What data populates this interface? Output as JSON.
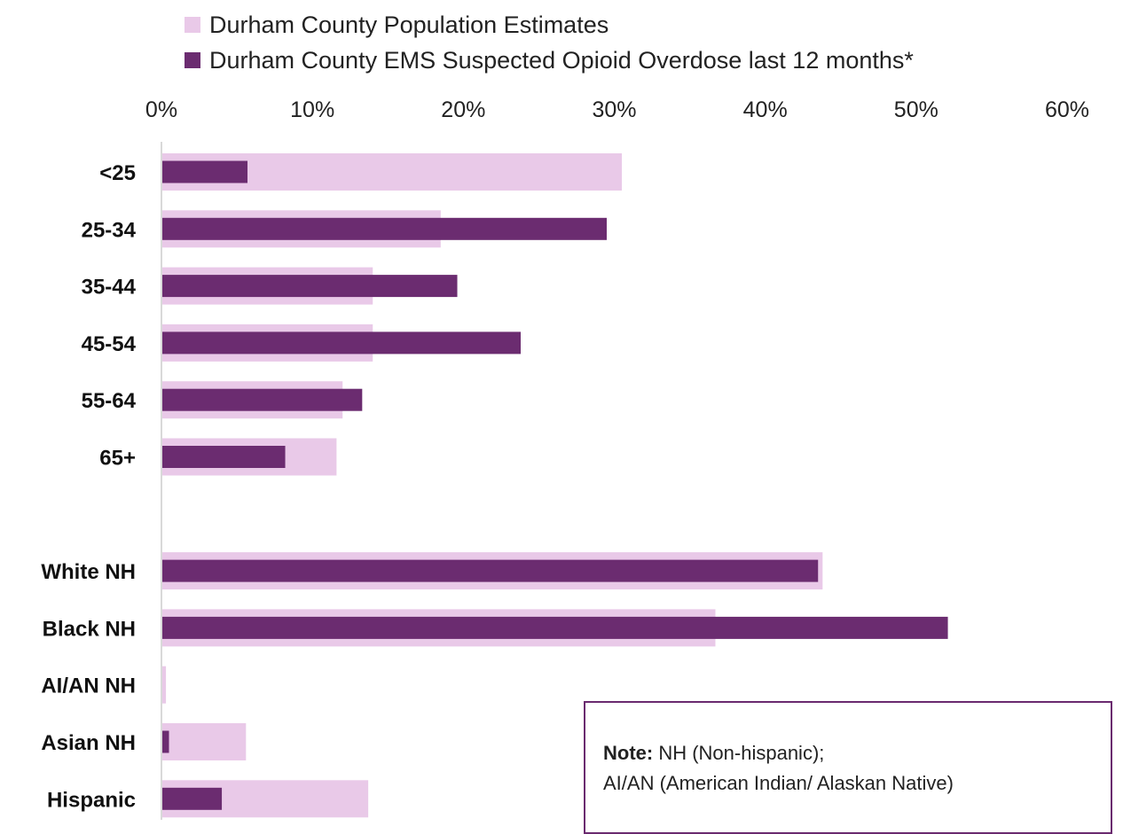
{
  "colors": {
    "population": "#e9c9e8",
    "ems": "#6b2c70",
    "axis": "#d9d9d9",
    "note_border": "#6a2a6f"
  },
  "legend": {
    "population_label": "Durham County Population Estimates",
    "ems_label": "Durham County EMS Suspected Opioid Overdose last 12 months*"
  },
  "note": {
    "bold": "Note:",
    "line1": " NH (Non-hispanic);",
    "line2": "AI/AN (American Indian/ Alaskan Native)"
  },
  "chart_data": {
    "type": "bar",
    "orientation": "horizontal",
    "xlim": [
      0,
      60
    ],
    "x_ticks": [
      "0%",
      "10%",
      "20%",
      "30%",
      "40%",
      "50%",
      "60%"
    ],
    "x_tick_values": [
      0,
      10,
      20,
      30,
      40,
      50,
      60
    ],
    "x_axis_position": "top",
    "legend_position": "top",
    "grid": false,
    "categories": [
      "<25",
      "25-34",
      "35-44",
      "45-54",
      "55-64",
      "65+",
      "",
      "White NH",
      "Black NH",
      "AI/AN NH",
      "Asian NH",
      "Hispanic"
    ],
    "series": [
      {
        "name": "Durham County Population Estimates",
        "values": [
          30.5,
          18.5,
          14.0,
          14.0,
          12.0,
          11.6,
          null,
          43.8,
          36.7,
          0.3,
          5.6,
          13.7
        ]
      },
      {
        "name": "Durham County EMS Suspected Opioid Overdose last 12 months*",
        "values": [
          5.7,
          29.5,
          19.6,
          23.8,
          13.3,
          8.2,
          null,
          43.5,
          52.1,
          0.0,
          0.5,
          4.0
        ]
      }
    ]
  }
}
